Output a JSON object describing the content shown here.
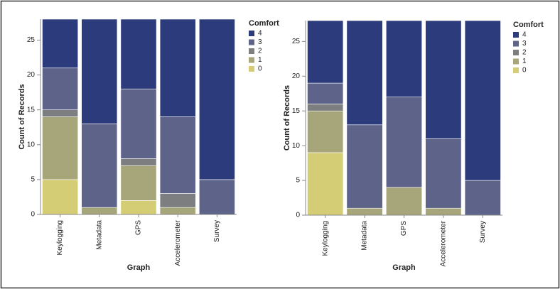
{
  "chart_data": [
    {
      "type": "bar",
      "stacked": true,
      "x_label": "Graph",
      "y_label": "Count of Records",
      "legend_title": "Comfort",
      "categories": [
        "Keylogging",
        "Metadata",
        "GPS",
        "Accelerometer",
        "Survey"
      ],
      "ylim": [
        0,
        28
      ],
      "yticks": [
        0,
        5,
        10,
        15,
        20,
        25
      ],
      "series": [
        {
          "name": "4",
          "color": "#2c3b7b",
          "values": [
            7,
            15,
            10,
            14,
            23
          ]
        },
        {
          "name": "3",
          "color": "#5e6389",
          "values": [
            6,
            12,
            10,
            11,
            5
          ]
        },
        {
          "name": "2",
          "color": "#7d7e7f",
          "values": [
            1,
            0,
            1,
            2,
            0
          ]
        },
        {
          "name": "1",
          "color": "#a7a67b",
          "values": [
            9,
            1,
            5,
            1,
            0
          ]
        },
        {
          "name": "0",
          "color": "#d5cc76",
          "values": [
            5,
            0,
            2,
            0,
            0
          ]
        }
      ]
    },
    {
      "type": "bar",
      "stacked": true,
      "x_label": "Graph",
      "y_label": "Count of Records",
      "legend_title": "Comfort",
      "categories": [
        "Keylogging",
        "Metadata",
        "GPS",
        "Accelerometer",
        "Survey"
      ],
      "ylim": [
        0,
        28
      ],
      "yticks": [
        0,
        5,
        10,
        15,
        20,
        25
      ],
      "series": [
        {
          "name": "4",
          "color": "#2c3b7b",
          "values": [
            9,
            15,
            11,
            17,
            23
          ]
        },
        {
          "name": "3",
          "color": "#5e6389",
          "values": [
            3,
            12,
            13,
            10,
            5
          ]
        },
        {
          "name": "2",
          "color": "#7d7e7f",
          "values": [
            1,
            0,
            0,
            0,
            0
          ]
        },
        {
          "name": "1",
          "color": "#a7a67b",
          "values": [
            6,
            1,
            4,
            1,
            0
          ]
        },
        {
          "name": "0",
          "color": "#d5cc76",
          "values": [
            9,
            0,
            0,
            0,
            0
          ]
        }
      ]
    }
  ]
}
